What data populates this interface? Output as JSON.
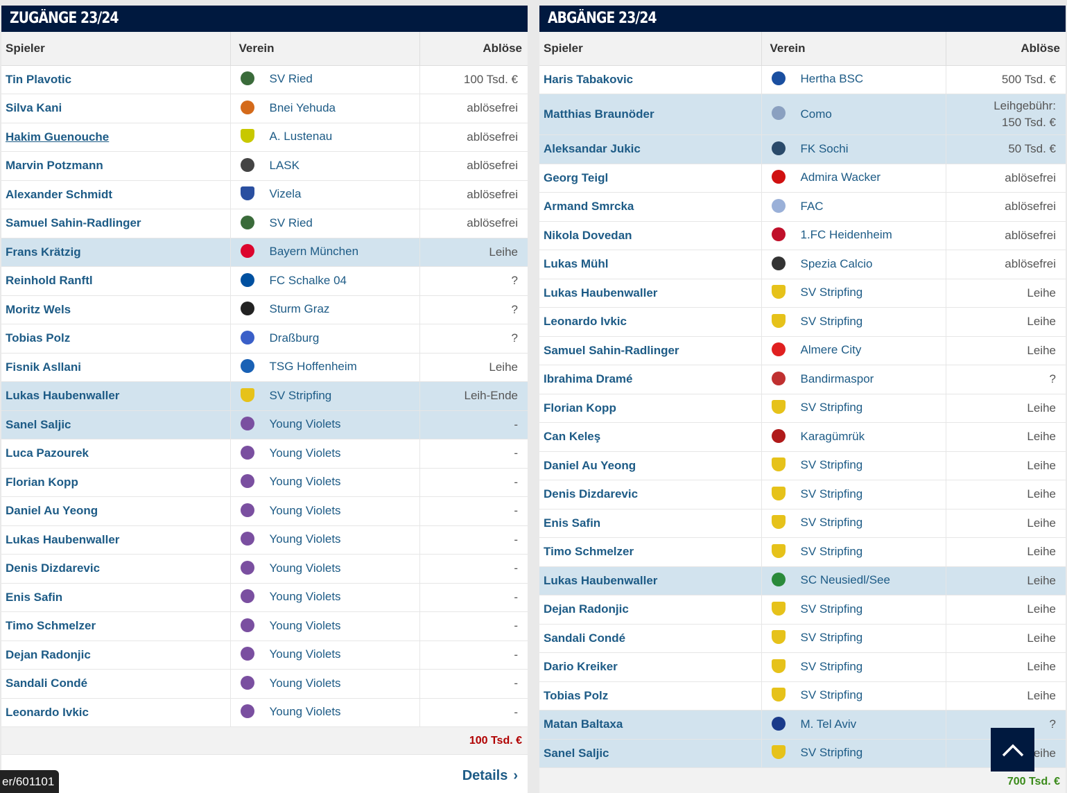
{
  "left": {
    "title": "ZUGÄNGE 23/24",
    "headers": {
      "player": "Spieler",
      "club": "Verein",
      "fee": "Ablöse"
    },
    "rows": [
      {
        "player": "Tin Plavotic",
        "club": "SV Ried",
        "fee": "100 Tsd. €",
        "crest": "#3a6b3a",
        "hl": false
      },
      {
        "player": "Silva Kani",
        "club": "Bnei Yehuda",
        "fee": "ablösefrei",
        "crest": "#d46a1a",
        "hl": false
      },
      {
        "player": "Hakim Guenouche",
        "club": "A. Lustenau",
        "fee": "ablösefrei",
        "crest": "#c8c800",
        "hl": false,
        "underline": true
      },
      {
        "player": "Marvin Potzmann",
        "club": "LASK",
        "fee": "ablösefrei",
        "crest": "#444444",
        "hl": false
      },
      {
        "player": "Alexander Schmidt",
        "club": "Vizela",
        "fee": "ablösefrei",
        "crest": "#2a4fa0",
        "hl": false
      },
      {
        "player": "Samuel Sahin-Radlinger",
        "club": "SV Ried",
        "fee": "ablösefrei",
        "crest": "#3a6b3a",
        "hl": false
      },
      {
        "player": "Frans Krätzig",
        "club": "Bayern München",
        "fee": "Leihe",
        "crest": "#dc052d",
        "hl": true
      },
      {
        "player": "Reinhold Ranftl",
        "club": "FC Schalke 04",
        "fee": "?",
        "crest": "#0050a0",
        "hl": false
      },
      {
        "player": "Moritz Wels",
        "club": "Sturm Graz",
        "fee": "?",
        "crest": "#222222",
        "hl": false
      },
      {
        "player": "Tobias Polz",
        "club": "Draßburg",
        "fee": "?",
        "crest": "#3a5fc8",
        "hl": false
      },
      {
        "player": "Fisnik Asllani",
        "club": "TSG Hoffenheim",
        "fee": "Leihe",
        "crest": "#1961b5",
        "hl": false
      },
      {
        "player": "Lukas Haubenwaller",
        "club": "SV Stripfing",
        "fee": "Leih-Ende",
        "crest": "#e6c21a",
        "hl": true
      },
      {
        "player": "Sanel Saljic",
        "club": "Young Violets",
        "fee": "-",
        "crest": "#7a4fa0",
        "hl": true
      },
      {
        "player": "Luca Pazourek",
        "club": "Young Violets",
        "fee": "-",
        "crest": "#7a4fa0",
        "hl": false
      },
      {
        "player": "Florian Kopp",
        "club": "Young Violets",
        "fee": "-",
        "crest": "#7a4fa0",
        "hl": false
      },
      {
        "player": "Daniel Au Yeong",
        "club": "Young Violets",
        "fee": "-",
        "crest": "#7a4fa0",
        "hl": false
      },
      {
        "player": "Lukas Haubenwaller",
        "club": "Young Violets",
        "fee": "-",
        "crest": "#7a4fa0",
        "hl": false
      },
      {
        "player": "Denis Dizdarevic",
        "club": "Young Violets",
        "fee": "-",
        "crest": "#7a4fa0",
        "hl": false
      },
      {
        "player": "Enis Safin",
        "club": "Young Violets",
        "fee": "-",
        "crest": "#7a4fa0",
        "hl": false
      },
      {
        "player": "Timo Schmelzer",
        "club": "Young Violets",
        "fee": "-",
        "crest": "#7a4fa0",
        "hl": false
      },
      {
        "player": "Dejan Radonjic",
        "club": "Young Violets",
        "fee": "-",
        "crest": "#7a4fa0",
        "hl": false
      },
      {
        "player": "Sandali Condé",
        "club": "Young Violets",
        "fee": "-",
        "crest": "#7a4fa0",
        "hl": false
      },
      {
        "player": "Leonardo Ivkic",
        "club": "Young Violets",
        "fee": "-",
        "crest": "#7a4fa0",
        "hl": false
      }
    ],
    "sum": "100 Tsd. €",
    "sum_color": "#b00000",
    "details_label": "Details"
  },
  "right": {
    "title": "ABGÄNGE 23/24",
    "headers": {
      "player": "Spieler",
      "club": "Verein",
      "fee": "Ablöse"
    },
    "rows": [
      {
        "player": "Haris Tabakovic",
        "club": "Hertha BSC",
        "fee": "500 Tsd. €",
        "crest": "#1a4fa0",
        "hl": false
      },
      {
        "player": "Matthias Braunöder",
        "club": "Como",
        "fee": "Leihgebühr: 150 Tsd. €",
        "fee1": "Leihgebühr:",
        "fee2": "150 Tsd. €",
        "crest": "#8aa0c0",
        "hl": true,
        "tall": true
      },
      {
        "player": "Aleksandar Jukic",
        "club": "FK Sochi",
        "fee": "50 Tsd. €",
        "crest": "#2a4a6a",
        "hl": true
      },
      {
        "player": "Georg Teigl",
        "club": "Admira Wacker",
        "fee": "ablösefrei",
        "crest": "#d01010",
        "hl": false
      },
      {
        "player": "Armand Smrcka",
        "club": "FAC",
        "fee": "ablösefrei",
        "crest": "#9ab0d8",
        "hl": false
      },
      {
        "player": "Nikola Dovedan",
        "club": "1.FC Heidenheim",
        "fee": "ablösefrei",
        "crest": "#c0102a",
        "hl": false
      },
      {
        "player": "Lukas Mühl",
        "club": "Spezia Calcio",
        "fee": "ablösefrei",
        "crest": "#333333",
        "hl": false
      },
      {
        "player": "Lukas Haubenwaller",
        "club": "SV Stripfing",
        "fee": "Leihe",
        "crest": "#e6c21a",
        "hl": false
      },
      {
        "player": "Leonardo Ivkic",
        "club": "SV Stripfing",
        "fee": "Leihe",
        "crest": "#e6c21a",
        "hl": false
      },
      {
        "player": "Samuel Sahin-Radlinger",
        "club": "Almere City",
        "fee": "Leihe",
        "crest": "#e02020",
        "hl": false
      },
      {
        "player": "Ibrahima Dramé",
        "club": "Bandirmaspor",
        "fee": "?",
        "crest": "#c03030",
        "hl": false
      },
      {
        "player": "Florian Kopp",
        "club": "SV Stripfing",
        "fee": "Leihe",
        "crest": "#e6c21a",
        "hl": false
      },
      {
        "player": "Can Keleş",
        "club": "Karagümrük",
        "fee": "Leihe",
        "crest": "#b01a1a",
        "hl": false
      },
      {
        "player": "Daniel Au Yeong",
        "club": "SV Stripfing",
        "fee": "Leihe",
        "crest": "#e6c21a",
        "hl": false
      },
      {
        "player": "Denis Dizdarevic",
        "club": "SV Stripfing",
        "fee": "Leihe",
        "crest": "#e6c21a",
        "hl": false
      },
      {
        "player": "Enis Safin",
        "club": "SV Stripfing",
        "fee": "Leihe",
        "crest": "#e6c21a",
        "hl": false
      },
      {
        "player": "Timo Schmelzer",
        "club": "SV Stripfing",
        "fee": "Leihe",
        "crest": "#e6c21a",
        "hl": false
      },
      {
        "player": "Lukas Haubenwaller",
        "club": "SC Neusiedl/See",
        "fee": "Leihe",
        "crest": "#2a8a3a",
        "hl": true
      },
      {
        "player": "Dejan Radonjic",
        "club": "SV Stripfing",
        "fee": "Leihe",
        "crest": "#e6c21a",
        "hl": false
      },
      {
        "player": "Sandali Condé",
        "club": "SV Stripfing",
        "fee": "Leihe",
        "crest": "#e6c21a",
        "hl": false
      },
      {
        "player": "Dario Kreiker",
        "club": "SV Stripfing",
        "fee": "Leihe",
        "crest": "#e6c21a",
        "hl": false
      },
      {
        "player": "Tobias Polz",
        "club": "SV Stripfing",
        "fee": "Leihe",
        "crest": "#e6c21a",
        "hl": false
      },
      {
        "player": "Matan Baltaxa",
        "club": "M. Tel Aviv",
        "fee": "?",
        "crest": "#1a3a8a",
        "hl": true
      },
      {
        "player": "Sanel Saljic",
        "club": "SV Stripfing",
        "fee": "Leihe",
        "crest": "#e6c21a",
        "hl": true
      }
    ],
    "sum": "700 Tsd. €",
    "sum_color": "#3a8a1a"
  },
  "tooltip": "er/601101",
  "scroll_top_icon": "chevron-up-icon"
}
